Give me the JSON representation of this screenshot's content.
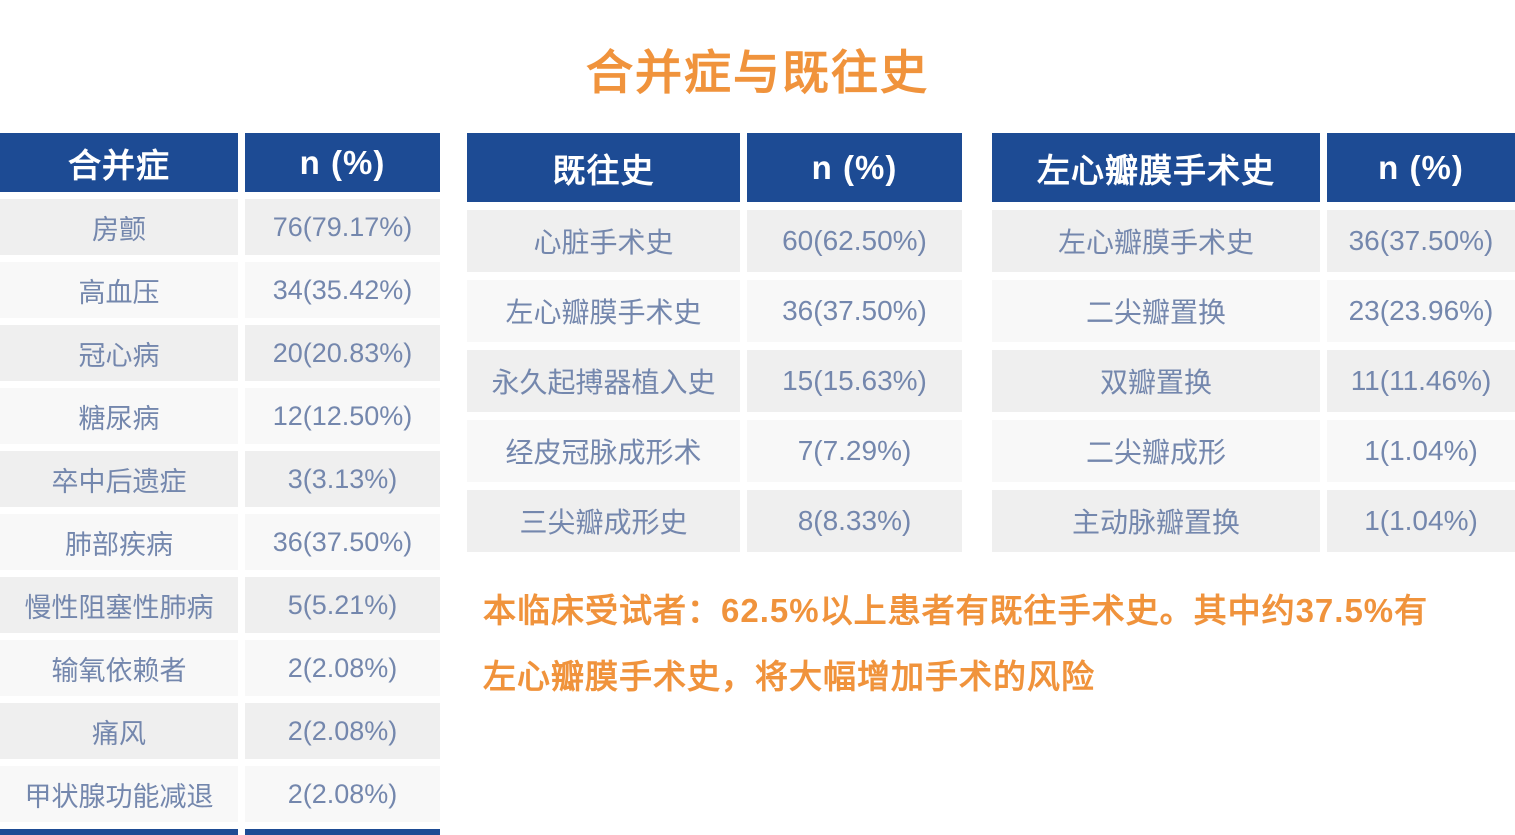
{
  "title": "合并症与既往史",
  "colors": {
    "header_navy": "#1d4b94",
    "accent_orange": "#f0933c",
    "row_text_blue": "#7487ad",
    "row_bg_dark": "#efefef",
    "row_bg_light": "#f8f8f8"
  },
  "tables": [
    {
      "name_header": "合并症",
      "value_header": "n (%)",
      "rows": [
        {
          "label": "房颤",
          "value": "76(79.17%)"
        },
        {
          "label": "高血压",
          "value": "34(35.42%)"
        },
        {
          "label": "冠心病",
          "value": "20(20.83%)"
        },
        {
          "label": "糖尿病",
          "value": "12(12.50%)"
        },
        {
          "label": "卒中后遗症",
          "value": "3(3.13%)"
        },
        {
          "label": "肺部疾病",
          "value": "36(37.50%)"
        },
        {
          "label": "慢性阻塞性肺病",
          "value": "5(5.21%)"
        },
        {
          "label": "输氧依赖者",
          "value": "2(2.08%)"
        },
        {
          "label": "痛风",
          "value": "2(2.08%)"
        },
        {
          "label": "甲状腺功能减退",
          "value": "2(2.08%)"
        }
      ]
    },
    {
      "name_header": "既往史",
      "value_header": "n (%)",
      "rows": [
        {
          "label": "心脏手术史",
          "value": "60(62.50%)"
        },
        {
          "label": "左心瓣膜手术史",
          "value": "36(37.50%)"
        },
        {
          "label": "永久起搏器植入史",
          "value": "15(15.63%)"
        },
        {
          "label": "经皮冠脉成形术",
          "value": "7(7.29%)"
        },
        {
          "label": "三尖瓣成形史",
          "value": "8(8.33%)"
        }
      ]
    },
    {
      "name_header": "左心瓣膜手术史",
      "value_header": "n (%)",
      "rows": [
        {
          "label": "左心瓣膜手术史",
          "value": "36(37.50%)"
        },
        {
          "label": "二尖瓣置换",
          "value": "23(23.96%)"
        },
        {
          "label": "双瓣置换",
          "value": "11(11.46%)"
        },
        {
          "label": "二尖瓣成形",
          "value": "1(1.04%)"
        },
        {
          "label": "主动脉瓣置换",
          "value": "1(1.04%)"
        }
      ]
    }
  ],
  "note": {
    "line1": "本临床受试者：62.5%以上患者有既往手术史。其中约37.5%有",
    "line2": "左心瓣膜手术史，将大幅增加手术的风险"
  }
}
